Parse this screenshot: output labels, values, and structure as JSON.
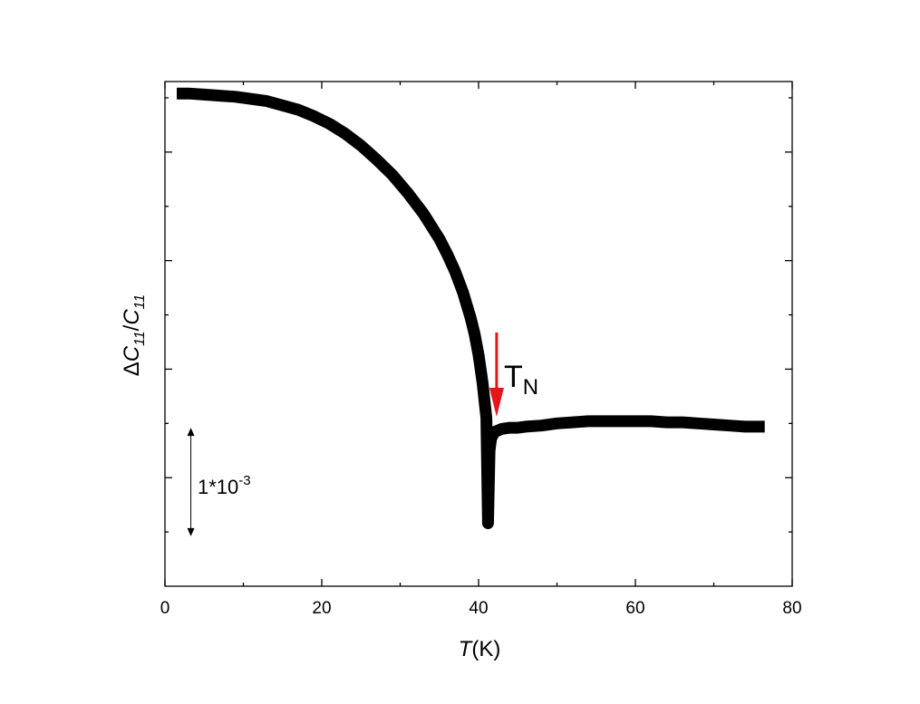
{
  "chart_data": {
    "type": "line",
    "xlabel_italic": "T",
    "xlabel_unit": "(K)",
    "ylabel_delta": "Δ",
    "ylabel_num": "C",
    "ylabel_sub1": "11",
    "ylabel_slash": "/",
    "ylabel_den": "C",
    "ylabel_sub2": "11",
    "xlim": [
      0,
      80
    ],
    "ylim": [
      0,
      4.65
    ],
    "x_ticks": [
      0,
      20,
      40,
      60,
      80
    ],
    "y_tick_values": [
      0.5,
      1.0,
      1.5,
      2.0,
      2.5,
      3.0,
      3.5,
      4.0,
      4.5
    ],
    "y_tick_labels_shown": false,
    "grid": false,
    "legend": "none",
    "line_color": "#000000",
    "series": [
      {
        "x": [
          1.5,
          3,
          5,
          7,
          9,
          11,
          13,
          15,
          17,
          19,
          21,
          23,
          25,
          27,
          29,
          31,
          33,
          35,
          36,
          37,
          38,
          39,
          39.5,
          40,
          40.5,
          41.0,
          41.2,
          41.4,
          41.6,
          42.0,
          43,
          44,
          45,
          46,
          48,
          50,
          52,
          54,
          56,
          58,
          60,
          62,
          64,
          66,
          68,
          70,
          72,
          74,
          76.5
        ],
        "y": [
          4.54,
          4.54,
          4.53,
          4.52,
          4.51,
          4.49,
          4.47,
          4.43,
          4.39,
          4.33,
          4.26,
          4.17,
          4.06,
          3.93,
          3.79,
          3.62,
          3.43,
          3.2,
          3.06,
          2.9,
          2.71,
          2.47,
          2.32,
          2.13,
          1.88,
          1.55,
          0.58,
          1.25,
          1.36,
          1.42,
          1.45,
          1.46,
          1.46,
          1.47,
          1.48,
          1.5,
          1.51,
          1.52,
          1.52,
          1.52,
          1.52,
          1.52,
          1.51,
          1.51,
          1.5,
          1.49,
          1.48,
          1.47,
          1.47
        ]
      }
    ],
    "annotations": {
      "marker_label_main": "T",
      "marker_label_sub": "N",
      "marker_x": 42.3,
      "marker_color": "#e8141b",
      "scale_bar_label": "1*10",
      "scale_bar_exp": "-3",
      "scale_bar_span": 1.0,
      "scale_bar_x": 3.3
    }
  }
}
